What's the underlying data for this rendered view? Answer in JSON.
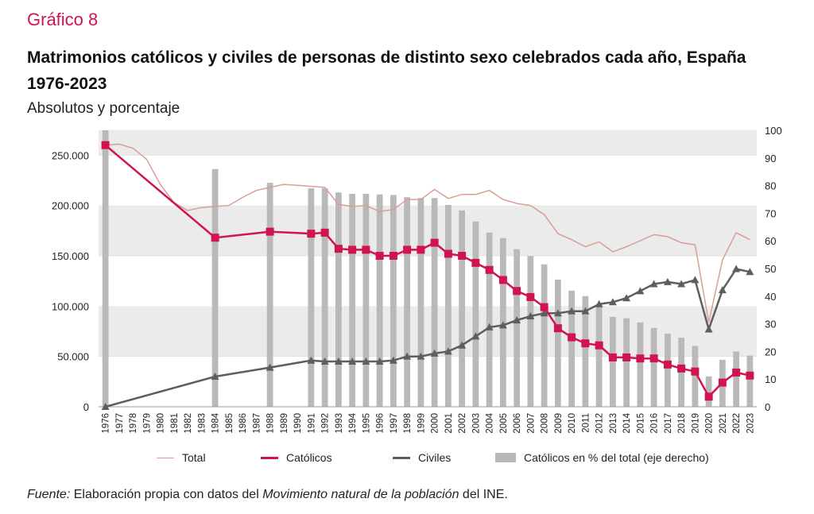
{
  "header": {
    "kicker": "Gráfico 8",
    "title": "Matrimonios católicos y civiles de personas de distinto sexo celebrados cada año, España 1976-2023",
    "subtitle": "Absolutos y porcentaje"
  },
  "legend": {
    "total": "Total",
    "catolicos": "Católicos",
    "civiles": "Civiles",
    "pct": "Católicos en % del total (eje derecho)"
  },
  "source": {
    "prefix": "Fuente:",
    "text1": " Elaboración propia con datos del ",
    "italic": "Movimiento natural de la población",
    "text2": " del INE."
  },
  "colors": {
    "total": "#dc9d96",
    "catolicos": "#d0144d",
    "civiles": "#5e5e5e",
    "bars": "#b9b9b9",
    "band": "#ebebeb"
  },
  "chart_data": {
    "type": "bar+line",
    "title": "Matrimonios católicos y civiles de personas de distinto sexo celebrados cada año, España 1976-2023",
    "xlabel": "",
    "ylabel_left": "",
    "ylabel_right": "",
    "ylim_left": [
      0,
      275000
    ],
    "ylim_right": [
      0,
      100
    ],
    "yticks_left": [
      0,
      50000,
      100000,
      150000,
      200000,
      250000
    ],
    "ytick_labels_left": [
      "0",
      "50.000",
      "100.000",
      "150.000",
      "200.000",
      "250.000"
    ],
    "yticks_right": [
      0,
      10,
      20,
      30,
      40,
      50,
      60,
      70,
      80,
      90,
      100
    ],
    "categories": [
      "1976",
      "1977",
      "1978",
      "1979",
      "1980",
      "1981",
      "1982",
      "1983",
      "1984",
      "1985",
      "1986",
      "1987",
      "1988",
      "1989",
      "1990",
      "1991",
      "1992",
      "1993",
      "1994",
      "1995",
      "1996",
      "1997",
      "1998",
      "1999",
      "2000",
      "2001",
      "2002",
      "2003",
      "2004",
      "2005",
      "2006",
      "2007",
      "2008",
      "2009",
      "2010",
      "2011",
      "2012",
      "2013",
      "2014",
      "2015",
      "2016",
      "2017",
      "2018",
      "2019",
      "2020",
      "2021",
      "2022",
      "2023"
    ],
    "series": [
      {
        "name": "Total",
        "kind": "line",
        "axis": "left",
        "values": [
          260000,
          261000,
          257000,
          246000,
          221000,
          203000,
          195000,
          198000,
          199000,
          200000,
          208000,
          215000,
          218000,
          221000,
          220000,
          219000,
          218000,
          201000,
          199000,
          200000,
          194000,
          196000,
          206000,
          206000,
          216000,
          207000,
          211000,
          211000,
          215000,
          206000,
          202000,
          200000,
          191000,
          172000,
          166000,
          159000,
          164000,
          154000,
          159000,
          165000,
          171000,
          169000,
          163000,
          161000,
          84000,
          146000,
          173000,
          166000
        ]
      },
      {
        "name": "Católicos",
        "kind": "line",
        "axis": "left",
        "values": [
          260000,
          null,
          null,
          null,
          null,
          null,
          null,
          null,
          168000,
          null,
          null,
          null,
          174000,
          null,
          null,
          172000,
          173000,
          157000,
          156000,
          156000,
          150000,
          150000,
          156000,
          156000,
          163000,
          152000,
          150000,
          143000,
          136000,
          126000,
          115000,
          109000,
          99000,
          78000,
          69000,
          63000,
          61000,
          49000,
          49000,
          48000,
          48000,
          42000,
          38000,
          35000,
          10000,
          24000,
          34000,
          31000
        ]
      },
      {
        "name": "Civiles",
        "kind": "line",
        "axis": "left",
        "values": [
          0,
          null,
          null,
          null,
          null,
          null,
          null,
          null,
          30000,
          null,
          null,
          null,
          39000,
          null,
          null,
          46000,
          45000,
          45000,
          45000,
          45000,
          45000,
          46000,
          50000,
          50000,
          53000,
          55000,
          61000,
          70000,
          79000,
          81000,
          86000,
          90000,
          93000,
          93000,
          95000,
          95000,
          102000,
          104000,
          108000,
          115000,
          122000,
          124000,
          122000,
          126000,
          77000,
          116000,
          137000,
          134000
        ]
      },
      {
        "name": "Católicos en % del total (eje derecho)",
        "kind": "bar",
        "axis": "right",
        "values": [
          100,
          null,
          null,
          null,
          null,
          null,
          null,
          null,
          86,
          null,
          null,
          null,
          81,
          null,
          null,
          79,
          79,
          77.5,
          77,
          77,
          76.8,
          76.6,
          75.8,
          75.5,
          75.5,
          73,
          71,
          67,
          63,
          61,
          57,
          54.5,
          51.5,
          46,
          42,
          40,
          37,
          32.5,
          32,
          30.5,
          28.5,
          26.5,
          25,
          22,
          11,
          17,
          20,
          18.5
        ]
      }
    ]
  }
}
